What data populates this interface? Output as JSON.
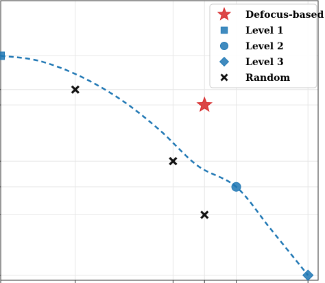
{
  "chart_data": {
    "type": "scatter",
    "grid": true,
    "legend_placement": "top-right",
    "xlim": [
      0,
      10
    ],
    "ylim": [
      0,
      10
    ],
    "series": [
      {
        "name": "Defocus-based",
        "marker": "star",
        "color": "#d62728",
        "points": [
          [
            6.42,
            6.27
          ]
        ]
      },
      {
        "name": "Level 1",
        "marker": "square",
        "color": "#1f77b4",
        "points": [
          [
            0.0,
            8.03
          ]
        ]
      },
      {
        "name": "Level 2",
        "marker": "circle",
        "color": "#1f77b4",
        "points": [
          [
            7.42,
            3.34
          ]
        ]
      },
      {
        "name": "Level 3",
        "marker": "diamond",
        "color": "#1f77b4",
        "points": [
          [
            9.68,
            0.18
          ]
        ]
      },
      {
        "name": "Random",
        "marker": "x",
        "color": "#111111",
        "points": [
          [
            2.35,
            6.82
          ],
          [
            5.43,
            4.26
          ],
          [
            6.42,
            2.34
          ]
        ]
      }
    ],
    "fit_curve": {
      "style": "dashed",
      "color": "#1f77b4",
      "points": [
        [
          0.0,
          8.03
        ],
        [
          1.2,
          7.85
        ],
        [
          2.5,
          7.3
        ],
        [
          3.8,
          6.45
        ],
        [
          5.0,
          5.38
        ],
        [
          6.2,
          4.1
        ],
        [
          7.42,
          3.34
        ],
        [
          8.5,
          1.84
        ],
        [
          9.68,
          0.18
        ]
      ]
    }
  }
}
